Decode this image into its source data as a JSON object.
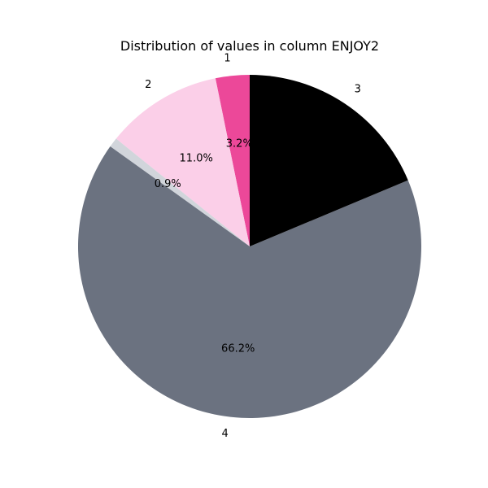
{
  "chart_data": {
    "type": "pie",
    "title": "Distribution of values in column ENJOY2",
    "categories": [
      "1",
      "2",
      "",
      "4",
      "3"
    ],
    "values": [
      3.2,
      11.0,
      0.9,
      66.2,
      18.7
    ],
    "percent_labels": [
      "3.2%",
      "11.0%",
      "0.9%",
      "66.2%",
      ""
    ],
    "colors": [
      "#ec4899",
      "#fbcfe8",
      "#d1d5db",
      "#6b7280",
      "#000000"
    ],
    "start_angle_deg": 90,
    "direction": "counterclockwise",
    "legend": "none"
  }
}
